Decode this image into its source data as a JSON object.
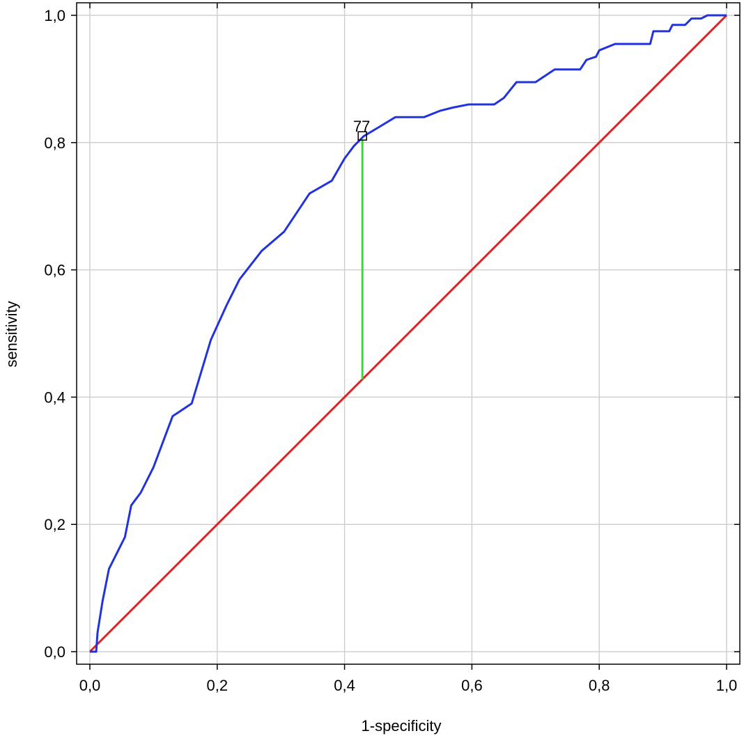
{
  "chart_data": {
    "type": "line",
    "xlabel": "1-specificity",
    "ylabel": "sensitivity",
    "xlim": [
      0.0,
      1.0
    ],
    "ylim": [
      0.0,
      1.0
    ],
    "grid": true,
    "xticks": [
      "0,0",
      "0,2",
      "0,4",
      "0,6",
      "0,8",
      "1,0"
    ],
    "yticks": [
      "0,0",
      "0,2",
      "0,4",
      "0,6",
      "0,8",
      "1,0"
    ],
    "tick_values": [
      0.0,
      0.2,
      0.4,
      0.6,
      0.8,
      1.0
    ],
    "series": [
      {
        "color": "#2233dd",
        "x": [
          0.0,
          0.01,
          0.012,
          0.02,
          0.03,
          0.045,
          0.055,
          0.065,
          0.08,
          0.1,
          0.13,
          0.16,
          0.19,
          0.215,
          0.235,
          0.27,
          0.305,
          0.345,
          0.38,
          0.4,
          0.415,
          0.43,
          0.455,
          0.48,
          0.525,
          0.55,
          0.57,
          0.595,
          0.635,
          0.65,
          0.67,
          0.7,
          0.73,
          0.77,
          0.78,
          0.795,
          0.8,
          0.825,
          0.86,
          0.88,
          0.885,
          0.91,
          0.915,
          0.935,
          0.945,
          0.96,
          0.97,
          1.0
        ],
        "y": [
          0.0,
          0.0,
          0.03,
          0.08,
          0.13,
          0.16,
          0.18,
          0.23,
          0.25,
          0.29,
          0.37,
          0.39,
          0.49,
          0.545,
          0.585,
          0.63,
          0.66,
          0.72,
          0.74,
          0.775,
          0.795,
          0.81,
          0.825,
          0.84,
          0.84,
          0.85,
          0.855,
          0.86,
          0.86,
          0.87,
          0.895,
          0.895,
          0.915,
          0.915,
          0.93,
          0.935,
          0.945,
          0.955,
          0.955,
          0.955,
          0.975,
          0.975,
          0.985,
          0.985,
          0.995,
          0.995,
          1.0,
          1.0
        ]
      },
      {
        "color": "#dd2222",
        "x": [
          0.0,
          1.0
        ],
        "y": [
          0.0,
          1.0
        ]
      }
    ],
    "cutoff": {
      "label": "77",
      "x": 0.428,
      "y_curve": 0.805,
      "y_diagonal": 0.428,
      "line_color": "#33dd33"
    }
  }
}
